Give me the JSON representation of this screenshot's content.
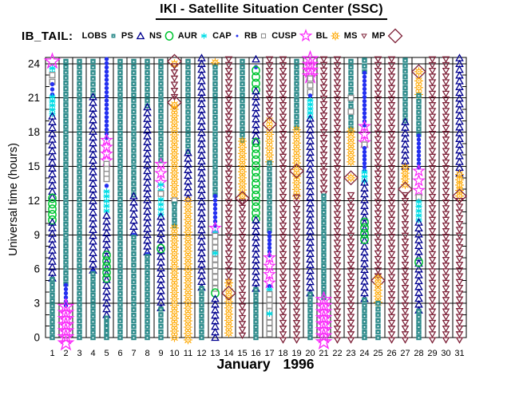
{
  "title": "IKI - Satellite Situation Center (SSC)",
  "dataset_label": "IB_TAIL:",
  "legend": [
    {
      "label": "LOBS",
      "region": "LOBS",
      "color": "#2F8C8C",
      "symbol": "filled-square"
    },
    {
      "label": "PS",
      "region": "PS",
      "color": "#00008F",
      "symbol": "open-triangle-up"
    },
    {
      "label": "NS",
      "region": "NS",
      "color": "#00C532",
      "symbol": "open-circle"
    },
    {
      "label": "AUR",
      "region": "AUR",
      "color": "#00DDE6",
      "symbol": "asterisk-star"
    },
    {
      "label": "CAP",
      "region": "CAP",
      "color": "#2430F0",
      "symbol": "filled-circle"
    },
    {
      "label": "RB",
      "region": "RB",
      "color": "#8F8F8F",
      "symbol": "open-square"
    },
    {
      "label": "CUSP",
      "region": "CUSP",
      "color": "#FA28FA",
      "symbol": "open-star"
    },
    {
      "label": "BL",
      "region": "BL",
      "color": "#FFA800",
      "symbol": "sun"
    },
    {
      "label": "MS",
      "region": "MS",
      "color": "#7E2239",
      "symbol": "open-triangle-down"
    },
    {
      "label": "MP",
      "region": "MP",
      "color": "#7E2239",
      "symbol": "open-diamond"
    }
  ],
  "axes": {
    "y_title": "Universal time (hours)",
    "x_title_month": "January",
    "x_title_year": "1996",
    "x_title": "January   1996"
  },
  "chart_data": {
    "type": "scatter",
    "title": "IKI - Satellite Situation Center (SSC)",
    "subtitle": "IB_TAIL regions vs day, January 1996",
    "xlabel": "January   1996",
    "ylabel": "Universal time (hours)",
    "x_axis": {
      "ticks": [
        1,
        2,
        3,
        4,
        5,
        6,
        7,
        8,
        9,
        10,
        11,
        12,
        13,
        14,
        15,
        16,
        17,
        18,
        19,
        20,
        21,
        22,
        23,
        24,
        25,
        26,
        27,
        28,
        29,
        30,
        31
      ],
      "range": [
        0.5,
        31.5
      ]
    },
    "y_axis": {
      "major_ticks": [
        0,
        3,
        6,
        9,
        12,
        15,
        18,
        21,
        24
      ],
      "minor_step": 1,
      "range": [
        0,
        24.5
      ]
    },
    "grid": {
      "vertical_day_lines": true,
      "horizontal_3h_lines": true
    },
    "legend_position": "top",
    "segment_format": "[region, from_hour_top, to_hour_bottom, big_flag(optional)]",
    "symbol_step_hours": {
      "LOBS": 0.48,
      "PS": 0.5,
      "NS": 0.52,
      "AUR": 0.42,
      "CAP": 0.36,
      "RB": 0.5,
      "CUSP": 0.72,
      "CUSP_BIG": 0.55,
      "BL": 0.56,
      "MS": 0.5,
      "MP": 1
    },
    "days": [
      {
        "day": 1,
        "segments": [
          [
            "CUSP",
            24.2,
            24.2,
            1
          ],
          [
            "AUR",
            23.6,
            23.2
          ],
          [
            "RB",
            23.0,
            22.4
          ],
          [
            "CAP",
            22.2,
            21.3
          ],
          [
            "AUR",
            21.1,
            19.6
          ],
          [
            "PS",
            19.4,
            12.3
          ],
          [
            "NS",
            12.2,
            10.3
          ],
          [
            "PS",
            10.1,
            5.2
          ],
          [
            "LOBS",
            5.1,
            0
          ]
        ]
      },
      {
        "day": 2,
        "segments": [
          [
            "LOBS",
            24.2,
            4.7
          ],
          [
            "CAP",
            4.6,
            2.8
          ],
          [
            "CUSP",
            2.7,
            -0.5,
            1
          ]
        ]
      },
      {
        "day": 3,
        "segments": [
          [
            "LOBS",
            24.2,
            0
          ]
        ]
      },
      {
        "day": 4,
        "segments": [
          [
            "LOBS",
            24.2,
            21.2
          ],
          [
            "PS",
            21.1,
            5.9
          ],
          [
            "CAP",
            5.8,
            5.8
          ],
          [
            "LOBS",
            5.6,
            0
          ]
        ]
      },
      {
        "day": 5,
        "segments": [
          [
            "CAP",
            24.4,
            17.5
          ],
          [
            "CUSP",
            17.3,
            15.5
          ],
          [
            "RB",
            15.2,
            13.9
          ],
          [
            "CAP",
            13.3,
            13.3
          ],
          [
            "AUR",
            12.8,
            11.1
          ],
          [
            "PS",
            10.7,
            2.0
          ],
          [
            "NS",
            7.2,
            5.2
          ],
          [
            "LOBS",
            1.7,
            0
          ]
        ]
      },
      {
        "day": 6,
        "segments": [
          [
            "LOBS",
            24.2,
            0
          ]
        ]
      },
      {
        "day": 7,
        "segments": [
          [
            "LOBS",
            24.2,
            12.5
          ],
          [
            "PS",
            12.4,
            9.2
          ],
          [
            "CAP",
            9.0,
            9.0
          ],
          [
            "LOBS",
            8.8,
            0
          ]
        ]
      },
      {
        "day": 8,
        "segments": [
          [
            "LOBS",
            24.2,
            20.3
          ],
          [
            "PS",
            20.2,
            7.5
          ],
          [
            "CAP",
            7.3,
            7.3
          ],
          [
            "LOBS",
            7.1,
            0
          ]
        ]
      },
      {
        "day": 9,
        "segments": [
          [
            "LOBS",
            24.2,
            15.5
          ],
          [
            "CUSP",
            15.2,
            13.6
          ],
          [
            "AUR",
            13.4,
            12.9
          ],
          [
            "RB",
            12.6,
            12.6
          ],
          [
            "AUR",
            12.1,
            10.8
          ],
          [
            "PS",
            10.6,
            2.6
          ],
          [
            "NS",
            7.8,
            7.8
          ],
          [
            "LOBS",
            2.5,
            0
          ]
        ]
      },
      {
        "day": 10,
        "segments": [
          [
            "MP",
            24.2,
            24.2
          ],
          [
            "BL",
            24.0,
            24.0
          ],
          [
            "MS",
            23.8,
            21.1
          ],
          [
            "MP",
            20.6,
            20.6
          ],
          [
            "BL",
            20.4,
            20.4
          ],
          [
            "BL",
            20.0,
            12.2
          ],
          [
            "RB",
            12.0,
            12.0
          ],
          [
            "LOBS",
            11.7,
            9.8
          ],
          [
            "BL",
            9.6,
            0
          ]
        ]
      },
      {
        "day": 11,
        "segments": [
          [
            "LOBS",
            24.2,
            16.3
          ],
          [
            "PS",
            16.2,
            12.2
          ],
          [
            "BL",
            12.0,
            -0.2
          ]
        ]
      },
      {
        "day": 12,
        "segments": [
          [
            "PS",
            24.5,
            4.4
          ],
          [
            "LOBS",
            4.3,
            0
          ]
        ]
      },
      {
        "day": 13,
        "segments": [
          [
            "BL",
            24.1,
            24.1
          ],
          [
            "LOBS",
            23.7,
            12.5
          ],
          [
            "CAP",
            12.4,
            9.8
          ],
          [
            "CUSP",
            9.6,
            9.6
          ],
          [
            "AUR",
            9.2,
            9.2
          ],
          [
            "RB",
            8.9,
            4.3
          ],
          [
            "AUR",
            7.4,
            7.4
          ],
          [
            "NS",
            3.9,
            3.9
          ],
          [
            "PS",
            3.4,
            0
          ]
        ]
      },
      {
        "day": 14,
        "segments": [
          [
            "MS",
            24.4,
            4.9
          ],
          [
            "BL",
            4.8,
            0.4
          ],
          [
            "MP",
            3.9,
            3.9
          ]
        ]
      },
      {
        "day": 15,
        "segments": [
          [
            "LOBS",
            24.2,
            17.3
          ],
          [
            "BL",
            17.2,
            12.4
          ],
          [
            "MP",
            12.2,
            12.2
          ],
          [
            "MS",
            11.9,
            0.2
          ]
        ]
      },
      {
        "day": 16,
        "segments": [
          [
            "PS",
            24.4,
            24.4
          ],
          [
            "CAP",
            23.7,
            23.7
          ],
          [
            "NS",
            23.4,
            21.7
          ],
          [
            "PS",
            21.6,
            17.2
          ],
          [
            "NS",
            17.1,
            10.4
          ],
          [
            "PS",
            10.3,
            4.3
          ],
          [
            "LOBS",
            4.2,
            0
          ]
        ]
      },
      {
        "day": 17,
        "segments": [
          [
            "MS",
            24.4,
            19.4
          ],
          [
            "BL",
            19.0,
            15.4
          ],
          [
            "MP",
            18.7,
            18.7
          ],
          [
            "LOBS",
            15.3,
            9.4
          ],
          [
            "CAP",
            9.2,
            7.2
          ],
          [
            "CUSP",
            7.0,
            4.8
          ],
          [
            "CAP",
            4.5,
            4.5
          ],
          [
            "AUR",
            4.2,
            4.2
          ],
          [
            "RB",
            3.8,
            0.3
          ],
          [
            "AUR",
            2.1,
            2.1
          ]
        ]
      },
      {
        "day": 18,
        "segments": [
          [
            "MS",
            24.4,
            -0.2
          ]
        ]
      },
      {
        "day": 19,
        "segments": [
          [
            "LOBS",
            24.2,
            18.4
          ],
          [
            "BL",
            18.2,
            12.4
          ],
          [
            "MP",
            14.6,
            14.6
          ],
          [
            "MS",
            12.3,
            -0.2
          ]
        ]
      },
      {
        "day": 20,
        "segments": [
          [
            "CUSP",
            24.4,
            22.9,
            1
          ],
          [
            "RB",
            22.7,
            21.5
          ],
          [
            "CAP",
            21.2,
            21.2
          ],
          [
            "AUR",
            20.8,
            19.3
          ],
          [
            "PS",
            19.2,
            3.9
          ],
          [
            "LOBS",
            3.8,
            0
          ]
        ]
      },
      {
        "day": 21,
        "segments": [
          [
            "MS",
            24.4,
            12.6
          ],
          [
            "LOBS",
            12.4,
            3.5
          ],
          [
            "CUSP",
            3.3,
            -0.4,
            1
          ]
        ]
      },
      {
        "day": 22,
        "segments": [
          [
            "MS",
            24.4,
            -0.2
          ]
        ]
      },
      {
        "day": 23,
        "segments": [
          [
            "LOBS",
            24.2,
            18.3
          ],
          [
            "RB",
            21.0,
            21.0
          ],
          [
            "RB",
            19.8,
            19.8
          ],
          [
            "BL",
            18.1,
            15.4
          ],
          [
            "MP",
            14.0,
            14.0
          ],
          [
            "BL",
            14.0,
            14.0
          ],
          [
            "MS",
            12.5,
            -0.2
          ]
        ]
      },
      {
        "day": 24,
        "segments": [
          [
            "LOBS",
            24.3,
            23.3
          ],
          [
            "CAP",
            23.2,
            18.6
          ],
          [
            "CUSP",
            18.5,
            17.1
          ],
          [
            "RB",
            16.9,
            16.9
          ],
          [
            "CAP",
            16.6,
            14.6
          ],
          [
            "AUR",
            14.5,
            13.7
          ],
          [
            "PS",
            13.6,
            3.4
          ],
          [
            "NS",
            10.1,
            8.6
          ],
          [
            "LOBS",
            3.3,
            0
          ]
        ]
      },
      {
        "day": 25,
        "segments": [
          [
            "MS",
            24.4,
            5.4
          ],
          [
            "MP",
            5.0,
            5.0
          ],
          [
            "BL",
            5.2,
            3.1
          ],
          [
            "LOBS",
            3.0,
            0
          ]
        ]
      },
      {
        "day": 26,
        "segments": [
          [
            "MS",
            24.4,
            -0.2
          ]
        ]
      },
      {
        "day": 27,
        "segments": [
          [
            "LOBS",
            24.3,
            19.0
          ],
          [
            "PS",
            18.9,
            15.0
          ],
          [
            "BL",
            14.9,
            13.4
          ],
          [
            "MP",
            13.0,
            13.0
          ],
          [
            "MS",
            12.5,
            -0.2
          ]
        ]
      },
      {
        "day": 28,
        "segments": [
          [
            "MP",
            23.3,
            23.3
          ],
          [
            "BL",
            23.3,
            23.3
          ],
          [
            "BL",
            22.5,
            21.3
          ],
          [
            "LOBS",
            21.2,
            17.8
          ],
          [
            "CAP",
            17.7,
            14.9
          ],
          [
            "CUSP",
            14.6,
            12.9
          ],
          [
            "RB",
            12.3,
            12.3
          ],
          [
            "AUR",
            11.9,
            10.3
          ],
          [
            "PS",
            10.1,
            2.4
          ],
          [
            "NS",
            6.6,
            6.6
          ],
          [
            "LOBS",
            2.3,
            0
          ]
        ]
      },
      {
        "day": 29,
        "segments": [
          [
            "MS",
            24.4,
            -0.2
          ]
        ]
      },
      {
        "day": 30,
        "segments": [
          [
            "MS",
            24.4,
            -0.2
          ]
        ]
      },
      {
        "day": 31,
        "segments": [
          [
            "PS",
            24.5,
            14.4
          ],
          [
            "BL",
            14.3,
            12.9
          ],
          [
            "MP",
            12.4,
            12.4
          ],
          [
            "BL",
            12.4,
            12.4
          ],
          [
            "MS",
            12.0,
            -0.2
          ]
        ]
      }
    ]
  }
}
